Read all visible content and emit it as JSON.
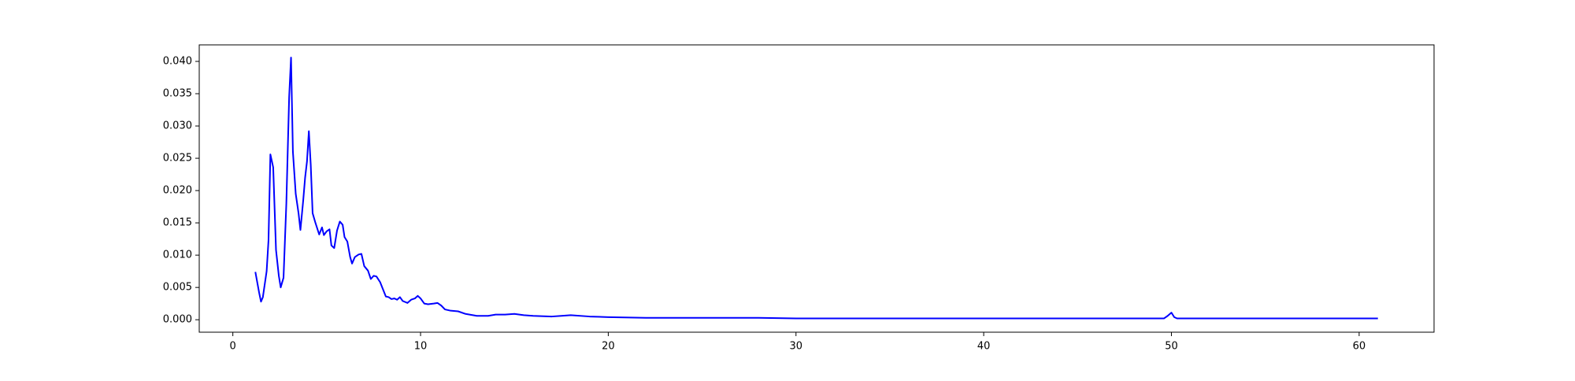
{
  "chart_data": {
    "type": "line",
    "x": [
      1.2,
      1.4,
      1.5,
      1.6,
      1.8,
      1.9,
      2.0,
      2.15,
      2.3,
      2.45,
      2.55,
      2.7,
      2.85,
      3.0,
      3.1,
      3.2,
      3.35,
      3.5,
      3.6,
      3.75,
      3.85,
      3.95,
      4.05,
      4.15,
      4.25,
      4.4,
      4.6,
      4.75,
      4.85,
      5.0,
      5.15,
      5.25,
      5.4,
      5.55,
      5.7,
      5.85,
      5.95,
      6.1,
      6.25,
      6.35,
      6.5,
      6.7,
      6.85,
      7.0,
      7.2,
      7.35,
      7.5,
      7.65,
      7.85,
      8.0,
      8.15,
      8.3,
      8.45,
      8.6,
      8.75,
      8.9,
      9.05,
      9.3,
      9.5,
      9.7,
      9.85,
      10.0,
      10.2,
      10.4,
      10.7,
      10.9,
      11.1,
      11.3,
      11.6,
      12.0,
      12.4,
      13.0,
      13.6,
      14.0,
      14.5,
      15.0,
      15.5,
      16.0,
      17.0,
      17.5,
      18.0,
      19.0,
      20.0,
      22,
      25,
      28,
      30,
      35,
      40,
      45,
      49.6,
      49.8,
      50.0,
      50.15,
      50.3,
      55,
      61
    ],
    "series": [
      {
        "color": "#0000ff",
        "values": [
          0.0074,
          0.0042,
          0.0028,
          0.0035,
          0.0075,
          0.0123,
          0.0256,
          0.0236,
          0.0108,
          0.0068,
          0.005,
          0.0065,
          0.018,
          0.0345,
          0.0406,
          0.026,
          0.0195,
          0.0165,
          0.0139,
          0.0185,
          0.022,
          0.0245,
          0.0292,
          0.024,
          0.0165,
          0.015,
          0.0132,
          0.0143,
          0.0131,
          0.0137,
          0.014,
          0.0115,
          0.0111,
          0.0138,
          0.0152,
          0.0147,
          0.0128,
          0.0121,
          0.0097,
          0.0087,
          0.0097,
          0.0101,
          0.0102,
          0.0083,
          0.0076,
          0.0063,
          0.0068,
          0.0067,
          0.0058,
          0.0047,
          0.0036,
          0.0035,
          0.0032,
          0.0033,
          0.0031,
          0.0035,
          0.0029,
          0.0026,
          0.0031,
          0.0033,
          0.0037,
          0.0033,
          0.0025,
          0.0024,
          0.0025,
          0.0026,
          0.0022,
          0.0016,
          0.0014,
          0.0013,
          0.0009,
          0.0006,
          0.0006,
          0.0008,
          0.0008,
          0.0009,
          0.0007,
          0.0006,
          0.0005,
          0.0006,
          0.0007,
          0.0005,
          0.0004,
          0.0003,
          0.0003,
          0.0003,
          0.0002,
          0.0002,
          0.0002,
          0.0002,
          0.0002,
          0.0006,
          0.0011,
          0.0004,
          0.0002,
          0.0002,
          0.0002
        ]
      }
    ],
    "xlim": [
      -1.79,
      63.99
    ],
    "xticks": [
      0,
      10,
      20,
      30,
      40,
      50,
      60
    ],
    "ylim": [
      -0.00193,
      0.04256
    ],
    "yticks": [
      {
        "value": 0,
        "label": "0.000"
      },
      {
        "value": 0.005,
        "label": "0.005"
      },
      {
        "value": 0.01,
        "label": "0.010"
      },
      {
        "value": 0.015,
        "label": "0.015"
      },
      {
        "value": 0.02,
        "label": "0.020"
      },
      {
        "value": 0.025,
        "label": "0.025"
      },
      {
        "value": 0.03,
        "label": "0.030"
      },
      {
        "value": 0.035,
        "label": "0.035"
      },
      {
        "value": 0.04,
        "label": "0.040"
      }
    ]
  }
}
